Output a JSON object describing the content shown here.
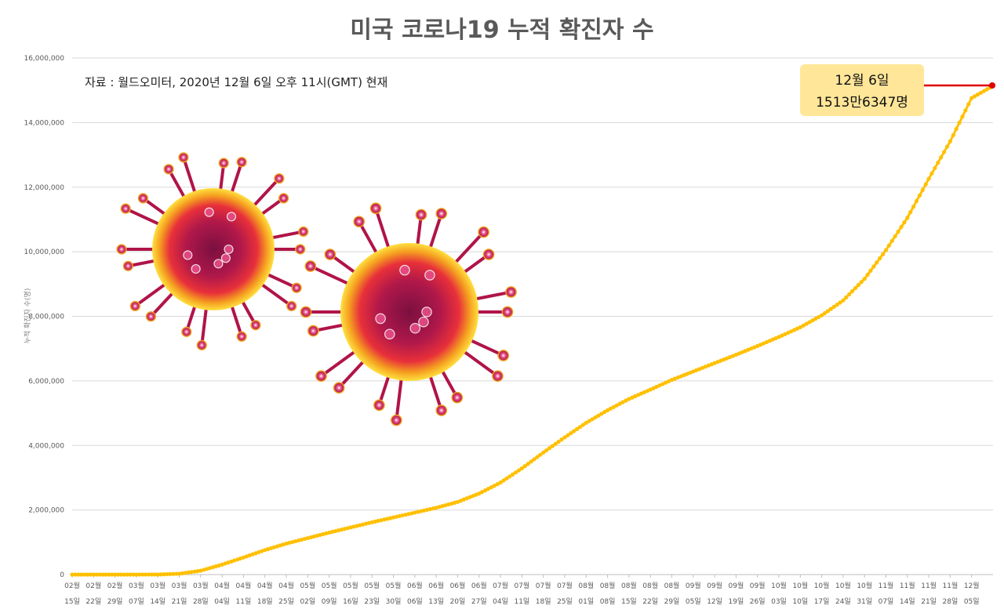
{
  "chart_data": {
    "type": "line",
    "title": "미국 코로나19 누적 확진자 수",
    "source_note": "자료 : 월드오미터, 2020년 12월 6일 오후 11시(GMT) 현재",
    "xlabel": "",
    "ylabel": "누적 확진자 수(명)",
    "ylim": [
      0,
      16000000
    ],
    "yticks": [
      "0",
      "2,000,000",
      "4,000,000",
      "6,000,000",
      "8,000,000",
      "10,000,000",
      "12,000,000",
      "14,000,000",
      "16,000,000"
    ],
    "grid": true,
    "series": [
      {
        "color": "#FFC000",
        "x": [
          "02월 15일",
          "02월 22일",
          "02월 29일",
          "03월 07일",
          "03월 14일",
          "03월 21일",
          "03월 28일",
          "04월 04일",
          "04월 11일",
          "04월 18일",
          "04월 25일",
          "05월 02일",
          "05월 09일",
          "05월 16일",
          "05월 23일",
          "05월 30일",
          "06월 06일",
          "06월 13일",
          "06월 20일",
          "06월 27일",
          "07월 04일",
          "07월 11일",
          "07월 18일",
          "07월 25일",
          "08월 01일",
          "08월 08일",
          "08월 15일",
          "08월 22일",
          "08월 29일",
          "09월 05일",
          "09월 12일",
          "09월 19일",
          "09월 26일",
          "10월 03일",
          "10월 10일",
          "10월 17일",
          "10월 24일",
          "10월 31일",
          "11월 07일",
          "11월 14일",
          "11월 21일",
          "11월 28일",
          "12월 05일",
          "12월 06일"
        ],
        "values": [
          15,
          35,
          70,
          430,
          2900,
          26000,
          120000,
          310000,
          530000,
          760000,
          960000,
          1130000,
          1300000,
          1460000,
          1620000,
          1770000,
          1920000,
          2070000,
          2250000,
          2510000,
          2850000,
          3290000,
          3780000,
          4250000,
          4700000,
          5090000,
          5440000,
          5730000,
          6030000,
          6290000,
          6550000,
          6810000,
          7080000,
          7360000,
          7660000,
          8030000,
          8490000,
          9160000,
          10050000,
          11050000,
          12260000,
          13420000,
          14760000,
          15136347
        ]
      }
    ],
    "annotation": {
      "line1": "12월 6일",
      "line2": "1513만6347명",
      "box_color": "#FFE699"
    }
  }
}
